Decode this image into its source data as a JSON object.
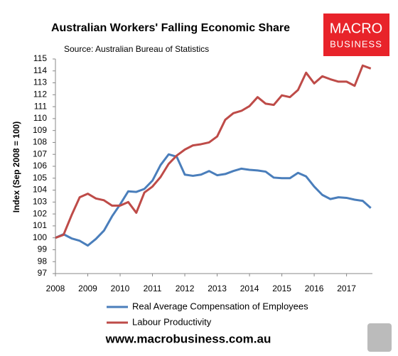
{
  "chart_data": {
    "type": "line",
    "title": "Australian Workers' Falling Economic Share",
    "subtitle": "Source: Australian Bureau of Statistics",
    "y_label": "Index (Sep 2008 = 100)",
    "x": [
      2008,
      2008.25,
      2008.5,
      2008.75,
      2009,
      2009.25,
      2009.5,
      2009.75,
      2010,
      2010.25,
      2010.5,
      2010.75,
      2011,
      2011.25,
      2011.5,
      2011.75,
      2012,
      2012.25,
      2012.5,
      2012.75,
      2013,
      2013.25,
      2013.5,
      2013.75,
      2014,
      2014.25,
      2014.5,
      2014.75,
      2015,
      2015.25,
      2015.5,
      2015.75,
      2016,
      2016.25,
      2016.5,
      2016.75,
      2017,
      2017.25,
      2017.5,
      2017.75
    ],
    "series": [
      {
        "name": "Real Average Compensation of Employees",
        "color": "#4a7ebb",
        "values": [
          100.0,
          100.3,
          99.95,
          99.75,
          99.35,
          99.9,
          100.6,
          101.8,
          102.8,
          103.9,
          103.85,
          104.1,
          104.8,
          106.1,
          107.0,
          106.8,
          105.3,
          105.2,
          105.3,
          105.6,
          105.25,
          105.35,
          105.6,
          105.8,
          105.7,
          105.65,
          105.55,
          105.05,
          105.0,
          105.0,
          105.45,
          105.15,
          104.3,
          103.6,
          103.25,
          103.4,
          103.35,
          103.2,
          103.1,
          102.5
        ]
      },
      {
        "name": "Labour Productivity",
        "color": "#be4b48",
        "values": [
          100.0,
          100.25,
          101.9,
          103.4,
          103.7,
          103.3,
          103.15,
          102.7,
          102.7,
          103.0,
          102.1,
          103.8,
          104.3,
          105.1,
          106.2,
          106.9,
          107.4,
          107.75,
          107.85,
          108.0,
          108.5,
          109.9,
          110.45,
          110.65,
          111.05,
          111.8,
          111.25,
          111.15,
          111.95,
          111.8,
          112.4,
          113.85,
          112.95,
          113.55,
          113.3,
          113.1,
          113.1,
          112.75,
          114.45,
          114.2
        ]
      }
    ],
    "xlim": [
      2008,
      2017.8
    ],
    "xticks": [
      2008,
      2009,
      2010,
      2011,
      2012,
      2013,
      2014,
      2015,
      2016,
      2017
    ],
    "ylim": [
      97,
      115
    ],
    "yticks": [
      97,
      98,
      99,
      100,
      101,
      102,
      103,
      104,
      105,
      106,
      107,
      108,
      109,
      110,
      111,
      112,
      113,
      114,
      115
    ],
    "grid": false,
    "legend": "bottom"
  },
  "logo": {
    "line1": "MACRO",
    "line2": "BUSINESS"
  },
  "footer": "www.macrobusiness.com.au"
}
